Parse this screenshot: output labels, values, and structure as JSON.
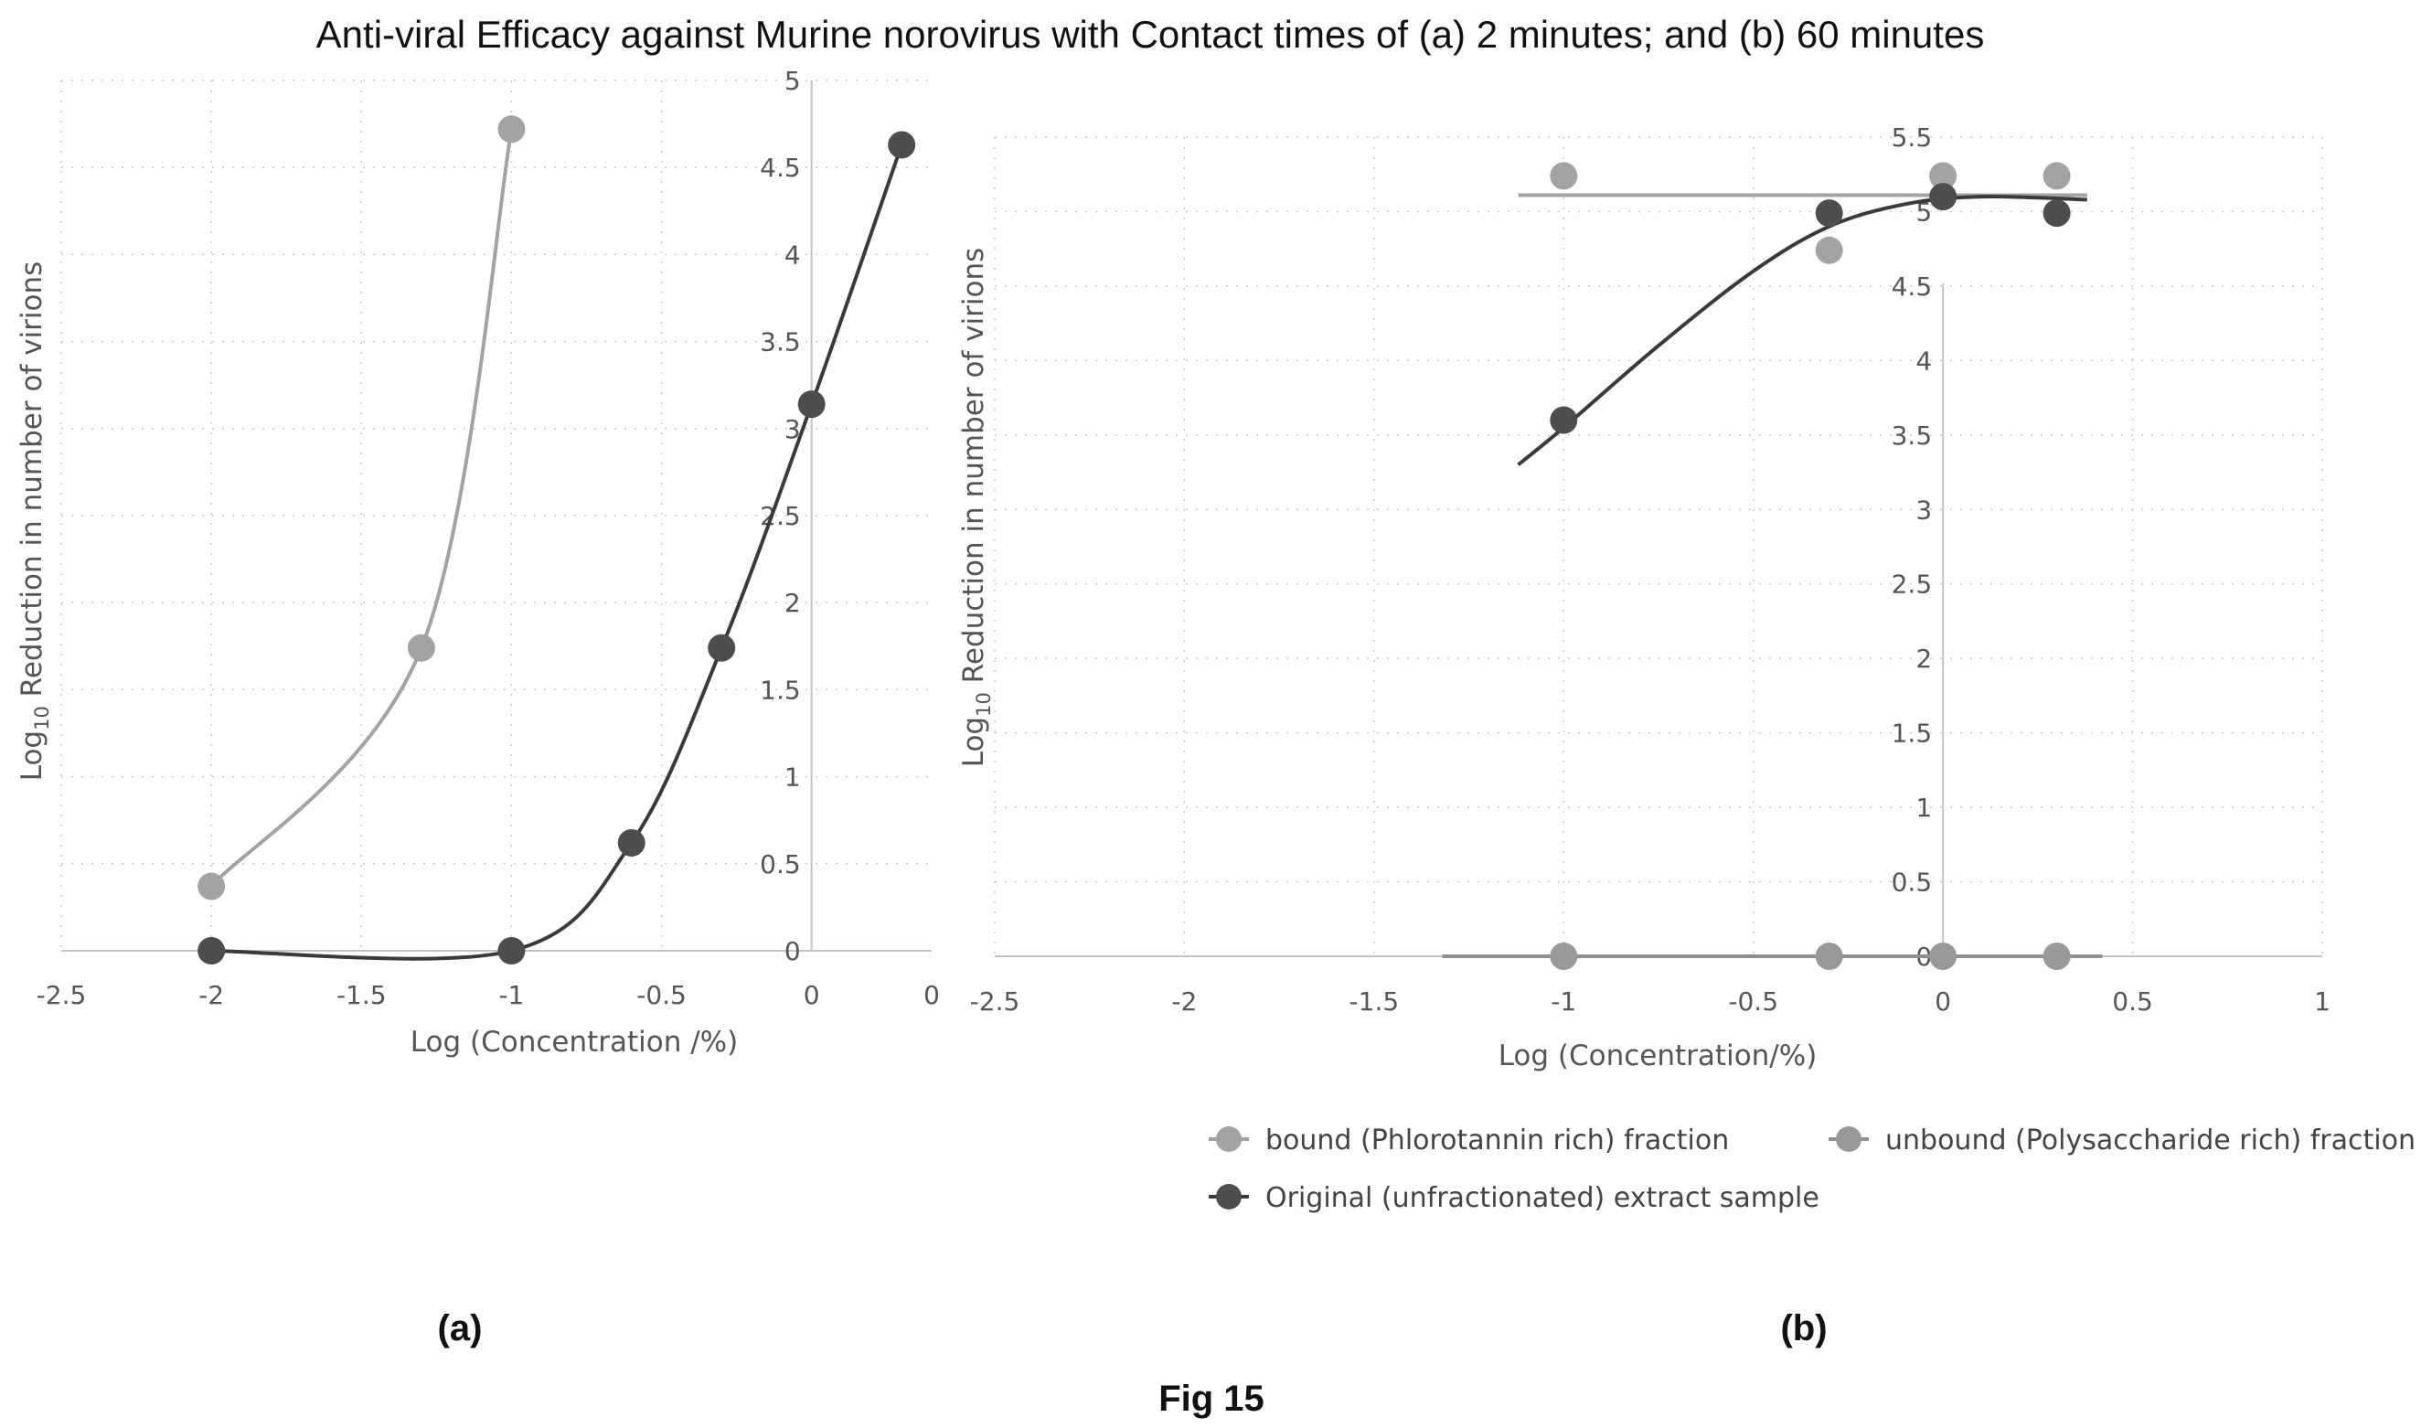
{
  "figure": {
    "title": "Anti-viral Efficacy against Murine norovirus with Contact times of (a) 2 minutes; and (b) 60 minutes",
    "caption": "Fig 15"
  },
  "colors": {
    "bound": "#a3a3a3",
    "unbound": "#999999",
    "original": "#4d4d4d",
    "bound_line": "#a3a3a3",
    "unbound_line": "#8f8f8f",
    "original_line": "#3a3a3a"
  },
  "legend": {
    "items": [
      {
        "key": "bound",
        "label": "bound (Phlorotannin rich) fraction"
      },
      {
        "key": "unbound",
        "label": "unbound (Polysaccharide rich) fraction"
      },
      {
        "key": "original",
        "label": "Original (unfractionated) extract sample"
      }
    ]
  },
  "chart_data": [
    {
      "panel": "(a)",
      "panel_label": "(a)",
      "type": "scatter",
      "xlabel": "Log (Concentration /%)",
      "ylabel_main": "Log",
      "ylabel_sub": "10",
      "ylabel_rest": " Reduction in number of virions",
      "xlim": [
        -2.5,
        0.4
      ],
      "ylim": [
        0,
        5
      ],
      "xticks": [
        -2.5,
        -2,
        -1.5,
        -1,
        -0.5,
        0
      ],
      "xtick_labels": [
        "-2.5",
        "-2",
        "-1.5",
        "-1",
        "-0.5",
        "0",
        "0"
      ],
      "yticks": [
        0,
        0.5,
        1,
        1.5,
        2,
        2.5,
        3,
        3.5,
        4,
        4.5,
        5
      ],
      "ytick_labels": [
        "0",
        "0.5",
        "1",
        "1.5",
        "2",
        "2.5",
        "3",
        "3.5",
        "4",
        "4.5",
        "5"
      ],
      "grid": true,
      "series": [
        {
          "key": "bound",
          "smooth": true,
          "x": [
            -2,
            -1.3,
            -1
          ],
          "y": [
            0.37,
            1.74,
            4.72
          ]
        },
        {
          "key": "original",
          "smooth": true,
          "x": [
            -2,
            -1,
            -0.6,
            -0.3,
            0,
            0.3
          ],
          "y": [
            0,
            0,
            0.62,
            1.74,
            3.14,
            4.63
          ]
        }
      ]
    },
    {
      "panel": "(b)",
      "panel_label": "(b)",
      "type": "scatter",
      "xlabel": "Log (Concentration/%)",
      "ylabel_main": "Log",
      "ylabel_sub": "10",
      "ylabel_rest": " Reduction in number of virions",
      "xlim": [
        -2.5,
        1
      ],
      "ylim": [
        0,
        5.5
      ],
      "xticks": [
        -2.5,
        -2,
        -1.5,
        -1,
        -0.5,
        0,
        0.5,
        1
      ],
      "xtick_labels": [
        "-2.5",
        "-2",
        "-1.5",
        "-1",
        "-0.5",
        "0",
        "0.5",
        "1"
      ],
      "yticks": [
        0,
        0.5,
        1,
        1.5,
        2,
        2.5,
        3,
        3.5,
        4,
        4.5,
        5,
        5.5
      ],
      "ytick_labels": [
        "0",
        "0.5",
        "1",
        "1.5",
        "2",
        "2.5",
        "3",
        "3.5",
        "4",
        "4.5",
        "5",
        "5.5"
      ],
      "grid": true,
      "series": [
        {
          "key": "bound",
          "x": [
            -1,
            -0.3,
            0,
            0.3
          ],
          "y": [
            5.24,
            4.74,
            5.24,
            5.24
          ],
          "trend": {
            "x": [
              -1.12,
              0.38
            ],
            "y": [
              5.11,
              5.11
            ]
          }
        },
        {
          "key": "unbound",
          "x": [
            -1,
            -0.3,
            0,
            0.3
          ],
          "y": [
            0,
            0,
            0,
            0
          ],
          "trend": {
            "x": [
              -1.32,
              0.42
            ],
            "y": [
              0,
              0
            ]
          }
        },
        {
          "key": "original",
          "x": [
            -1,
            -0.3,
            0,
            0.3
          ],
          "y": [
            3.6,
            4.99,
            5.1,
            4.99
          ],
          "trend": {
            "x": [
              -1.12,
              -1.0,
              -0.75,
              -0.5,
              -0.3,
              -0.1,
              0.1,
              0.38
            ],
            "y": [
              3.3,
              3.55,
              4.1,
              4.6,
              4.9,
              5.05,
              5.1,
              5.08
            ],
            "smooth": true
          }
        }
      ]
    }
  ]
}
